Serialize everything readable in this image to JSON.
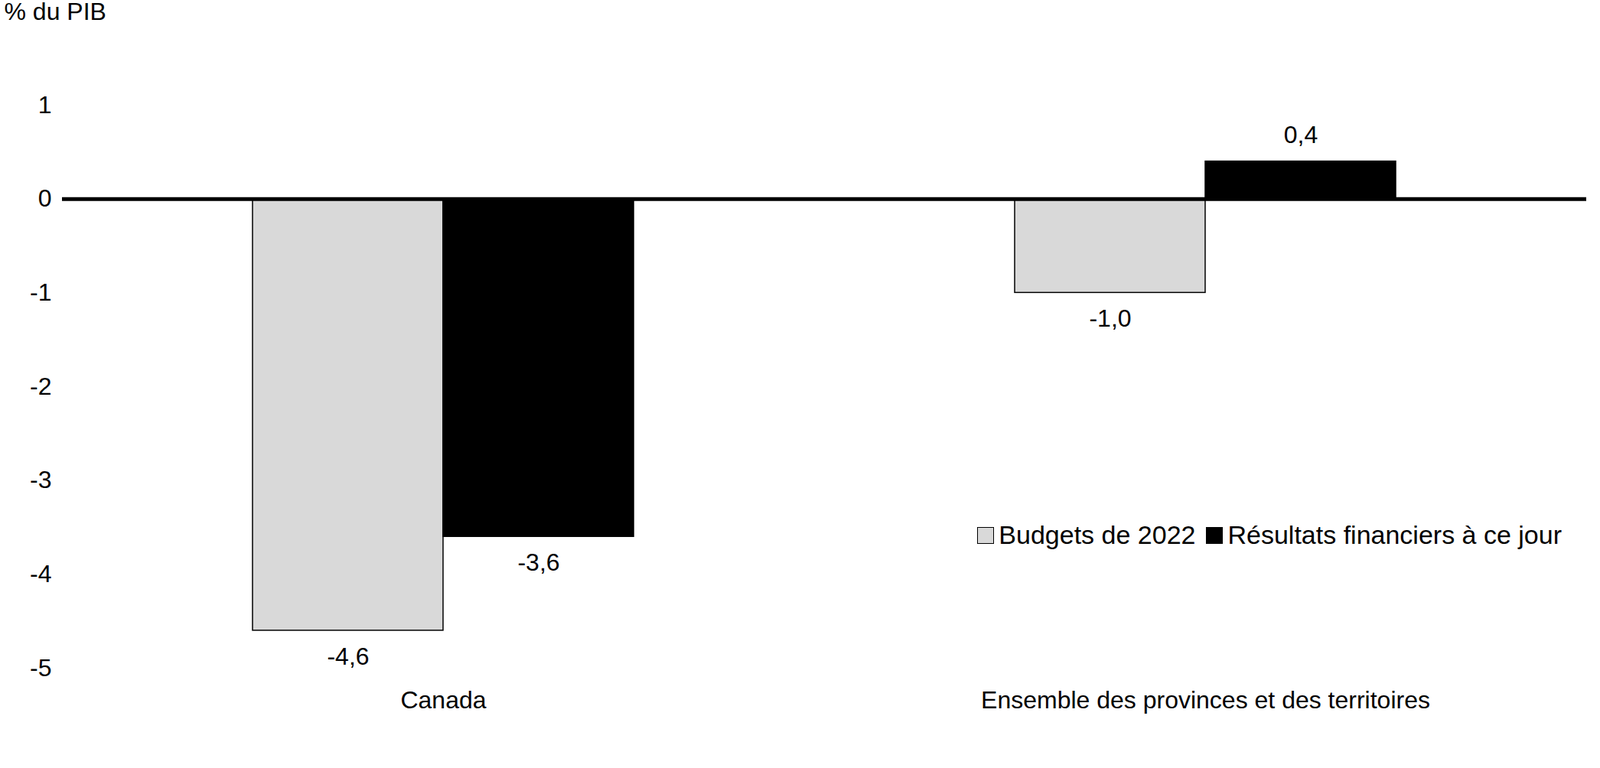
{
  "chart_data": {
    "type": "bar",
    "y_label": "% du PIB",
    "categories": [
      "Canada",
      "Ensemble des provinces et des territoires"
    ],
    "series": [
      {
        "name": "Budgets de 2022",
        "color": "#d9d9d9",
        "values": [
          -4.6,
          -1.0
        ],
        "value_labels": [
          "-4,6",
          "-1,0"
        ]
      },
      {
        "name": "Résultats financiers à ce jour",
        "color": "#000000",
        "values": [
          -3.6,
          0.4
        ],
        "value_labels": [
          "-3,6",
          "0,4"
        ]
      }
    ],
    "ylim": [
      -5,
      1
    ],
    "yticks": [
      -5,
      -4,
      -3,
      -2,
      -1,
      0,
      1
    ],
    "data_labels": true,
    "grid": false,
    "legend": "right"
  }
}
